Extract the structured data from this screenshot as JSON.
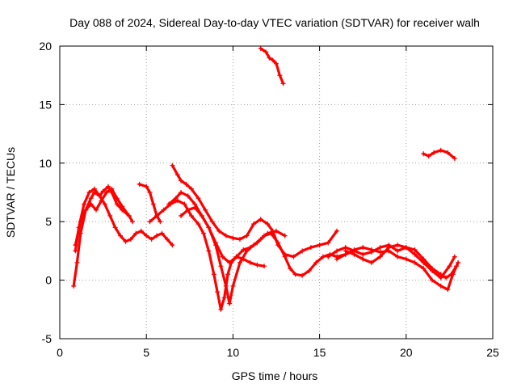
{
  "chart_data": {
    "type": "line",
    "title": "Day 088 of 2024, Sidereal Day-to-day VTEC variation (SDTVAR) for receiver walh",
    "xlabel": "GPS time / hours",
    "ylabel": "SDTVAR / TECUs",
    "xlim": [
      0,
      25
    ],
    "ylim": [
      -5,
      20
    ],
    "xticks": [
      0,
      5,
      10,
      15,
      20,
      25
    ],
    "yticks": [
      -5,
      0,
      5,
      10,
      15,
      20
    ],
    "grid": true,
    "marker": "plus",
    "color": "#ff0000",
    "series": [
      {
        "name": "trace-a",
        "x": [
          0.8,
          1.0,
          1.2,
          1.5,
          1.8,
          2.0,
          2.3,
          2.6,
          2.9,
          3.2,
          3.5,
          3.8,
          4.1,
          4.4,
          4.7,
          5.0,
          5.3,
          5.6,
          5.9,
          6.2,
          6.5
        ],
        "y": [
          -0.5,
          1.5,
          4.0,
          6.0,
          7.0,
          7.5,
          7.2,
          6.5,
          5.5,
          4.5,
          3.8,
          3.3,
          3.5,
          4.0,
          4.2,
          3.8,
          3.5,
          3.8,
          4.0,
          3.5,
          3.0
        ]
      },
      {
        "name": "trace-b",
        "x": [
          0.9,
          1.1,
          1.4,
          1.7,
          2.0,
          2.3,
          2.5,
          2.8,
          3.0,
          3.3,
          3.6,
          4.0,
          4.2
        ],
        "y": [
          2.5,
          4.5,
          6.5,
          7.5,
          7.8,
          7.2,
          7.6,
          8.0,
          7.5,
          6.5,
          6.0,
          5.5,
          5.0
        ]
      },
      {
        "name": "trace-c",
        "x": [
          0.9,
          1.2,
          1.5,
          1.8,
          2.1,
          2.4,
          2.7,
          3.0,
          3.3,
          3.6,
          4.0
        ],
        "y": [
          3.0,
          5.0,
          6.0,
          6.5,
          6.0,
          6.8,
          7.5,
          7.8,
          7.0,
          6.3,
          5.5
        ]
      },
      {
        "name": "trace-d",
        "x": [
          4.6,
          5.0,
          5.2,
          5.4,
          5.6,
          5.8
        ],
        "y": [
          8.2,
          8.0,
          7.5,
          6.5,
          5.5,
          5.0
        ]
      },
      {
        "name": "trace-e",
        "x": [
          5.2,
          5.6,
          6.0,
          6.4,
          6.8,
          7.2,
          7.6,
          8.0,
          8.3,
          8.6,
          8.9,
          9.1,
          9.3,
          9.5,
          9.7,
          9.9,
          10.2,
          10.6,
          11.0,
          11.4,
          11.8
        ],
        "y": [
          5.0,
          5.5,
          6.0,
          6.5,
          6.8,
          6.5,
          5.5,
          4.8,
          4.0,
          2.5,
          0.5,
          -1.0,
          -2.5,
          -1.5,
          0.5,
          1.5,
          2.0,
          1.8,
          1.5,
          1.3,
          1.2
        ]
      },
      {
        "name": "trace-f",
        "x": [
          6.5,
          6.8,
          7.0,
          7.3,
          7.6,
          8.0,
          8.4,
          8.8,
          9.2,
          9.6,
          10.0,
          10.4,
          10.8,
          11.2,
          11.6,
          12.0,
          12.3,
          12.6,
          13.0,
          13.5,
          14.0,
          14.5,
          15.0,
          15.5,
          16.0
        ],
        "y": [
          9.8,
          9.0,
          8.5,
          8.2,
          7.8,
          7.0,
          6.0,
          5.0,
          4.2,
          3.8,
          3.6,
          3.5,
          3.8,
          4.8,
          5.2,
          4.8,
          4.2,
          3.0,
          2.2,
          2.0,
          2.5,
          2.8,
          3.0,
          3.2,
          4.2
        ]
      },
      {
        "name": "trace-g",
        "x": [
          6.3,
          6.7,
          7.0,
          7.4,
          7.8,
          8.2,
          8.6,
          9.0,
          9.4,
          9.8,
          10.2,
          10.6,
          11.0,
          11.4,
          11.8,
          12.2,
          12.6,
          13.0,
          13.3,
          13.6,
          14.0,
          14.4,
          14.8,
          15.2,
          15.6,
          16.0,
          16.5,
          17.0
        ],
        "y": [
          6.5,
          7.0,
          7.5,
          7.2,
          6.5,
          5.5,
          4.5,
          3.2,
          2.0,
          1.5,
          2.0,
          2.6,
          2.8,
          3.2,
          3.8,
          4.0,
          3.2,
          2.0,
          1.0,
          0.5,
          0.4,
          0.8,
          1.5,
          2.0,
          2.2,
          2.0,
          2.2,
          2.5
        ]
      },
      {
        "name": "trace-h",
        "x": [
          7.0,
          7.4,
          7.8,
          8.2,
          8.6,
          9.0,
          9.3,
          9.6,
          9.8,
          10.0,
          10.4,
          10.8,
          11.2,
          11.6,
          12.0,
          12.5,
          13.0
        ],
        "y": [
          5.5,
          6.0,
          6.2,
          5.5,
          4.5,
          3.0,
          1.2,
          -0.5,
          -2.0,
          -0.5,
          1.5,
          2.5,
          3.0,
          3.5,
          4.0,
          4.2,
          3.8
        ]
      },
      {
        "name": "trace-i",
        "x": [
          11.6,
          11.9,
          12.1,
          12.3,
          12.5,
          12.7,
          12.9
        ],
        "y": [
          19.8,
          19.5,
          19.0,
          18.8,
          18.5,
          17.5,
          16.8
        ]
      },
      {
        "name": "trace-j",
        "x": [
          15.5,
          16.0,
          16.5,
          17.0,
          17.5,
          18.0,
          18.5,
          19.0,
          19.5,
          20.0,
          20.5,
          21.0,
          21.5,
          22.0,
          22.3,
          22.6,
          22.9
        ],
        "y": [
          2.0,
          2.5,
          2.8,
          2.5,
          2.2,
          2.4,
          2.8,
          3.0,
          2.5,
          2.8,
          2.6,
          1.8,
          1.0,
          0.5,
          0.2,
          0.5,
          1.2
        ]
      },
      {
        "name": "trace-k",
        "x": [
          16.0,
          16.5,
          17.0,
          17.5,
          18.0,
          18.5,
          19.0,
          19.5,
          20.0,
          20.5,
          21.0,
          21.5,
          22.0,
          22.4,
          22.7,
          23.0
        ],
        "y": [
          1.8,
          2.2,
          2.6,
          2.8,
          2.6,
          2.4,
          2.5,
          2.0,
          1.8,
          1.5,
          1.0,
          0.0,
          -0.5,
          -0.8,
          0.5,
          1.5
        ]
      },
      {
        "name": "trace-l",
        "x": [
          16.5,
          17.0,
          17.5,
          18.0,
          18.5,
          19.0,
          19.5,
          20.0,
          20.5,
          21.0,
          21.5,
          22.0,
          22.5,
          22.8
        ],
        "y": [
          2.5,
          2.2,
          1.8,
          1.5,
          2.0,
          2.8,
          3.0,
          2.8,
          2.2,
          1.5,
          0.8,
          0.2,
          1.2,
          2.0
        ]
      },
      {
        "name": "trace-m",
        "x": [
          21.0,
          21.3,
          21.6,
          22.0,
          22.4,
          22.8
        ],
        "y": [
          10.8,
          10.6,
          10.9,
          11.1,
          10.9,
          10.4
        ]
      }
    ]
  }
}
